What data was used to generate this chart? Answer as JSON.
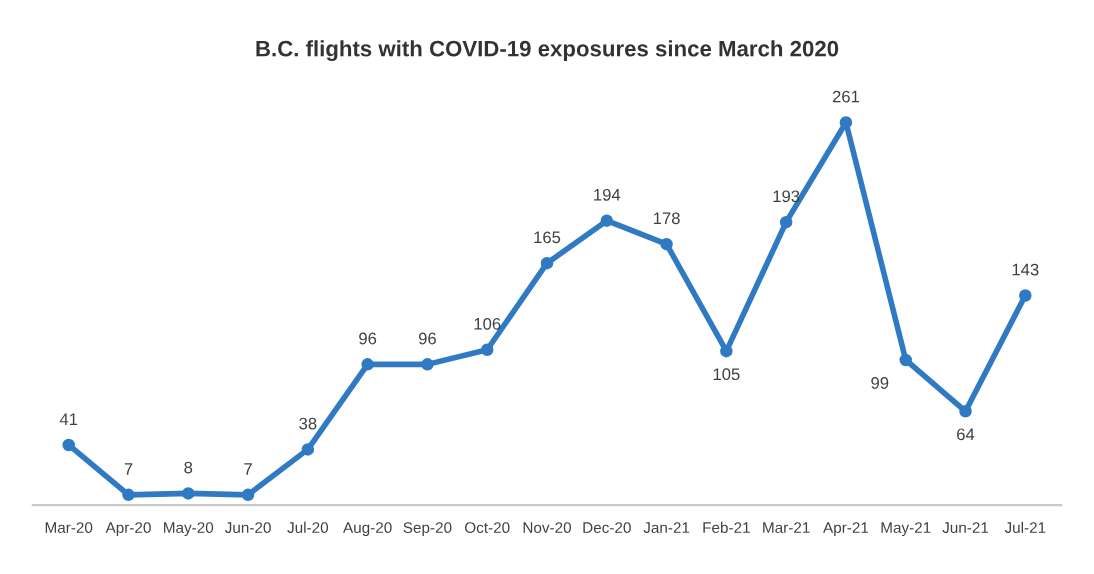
{
  "chart_data": {
    "type": "line",
    "title": "B.C. flights with COVID-19 exposures since March 2020",
    "categories": [
      "Mar-20",
      "Apr-20",
      "May-20",
      "Jun-20",
      "Jul-20",
      "Aug-20",
      "Sep-20",
      "Oct-20",
      "Nov-20",
      "Dec-20",
      "Jan-21",
      "Feb-21",
      "Mar-21",
      "Apr-21",
      "May-21",
      "Jun-21",
      "Jul-21"
    ],
    "series": [
      {
        "color": "#2f7ac3",
        "values": [
          41,
          7,
          8,
          7,
          38,
          96,
          96,
          106,
          165,
          194,
          178,
          105,
          193,
          261,
          99,
          64,
          143
        ]
      }
    ],
    "data_labels": true,
    "marker": "circle",
    "grid": false,
    "legend": false
  }
}
